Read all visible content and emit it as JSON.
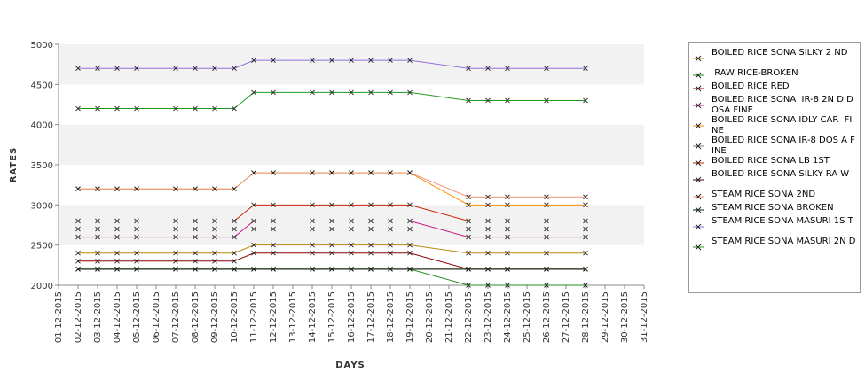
{
  "chart_data": {
    "type": "line",
    "title": "",
    "xlabel": "DAYS",
    "ylabel": "RATES",
    "ylim": [
      2000,
      5000
    ],
    "yticks": [
      2000,
      2500,
      3000,
      3500,
      4000,
      4500,
      5000
    ],
    "grid": "alternating horizontal bands",
    "legend_position": "right",
    "categories": [
      "01-12-2015",
      "02-12-2015",
      "03-12-2015",
      "04-12-2015",
      "05-12-2015",
      "06-12-2015",
      "07-12-2015",
      "08-12-2015",
      "09-12-2015",
      "10-12-2015",
      "11-12-2015",
      "12-12-2015",
      "13-12-2015",
      "14-12-2015",
      "15-12-2015",
      "16-12-2015",
      "17-12-2015",
      "18-12-2015",
      "19-12-2015",
      "20-12-2015",
      "21-12-2015",
      "22-12-2015",
      "23-12-2015",
      "24-12-2015",
      "25-12-2015",
      "26-12-2015",
      "27-12-2015",
      "28-12-2015",
      "29-12-2015",
      "30-12-2015",
      "31-12-2015"
    ],
    "x": [
      "02-12-2015",
      "03-12-2015",
      "04-12-2015",
      "05-12-2015",
      "07-12-2015",
      "08-12-2015",
      "09-12-2015",
      "10-12-2015",
      "11-12-2015",
      "12-12-2015",
      "14-12-2015",
      "15-12-2015",
      "16-12-2015",
      "17-12-2015",
      "18-12-2015",
      "19-12-2015",
      "22-12-2015",
      "23-12-2015",
      "24-12-2015",
      "26-12-2015",
      "28-12-2015"
    ],
    "series": [
      {
        "name": "BOILED RICE SONA SILKY 2 ND",
        "color": "#b8860b",
        "values": [
          2400,
          2400,
          2400,
          2400,
          2400,
          2400,
          2400,
          2400,
          2500,
          2500,
          2500,
          2500,
          2500,
          2500,
          2500,
          2500,
          2400,
          2400,
          2400,
          2400,
          2400
        ]
      },
      {
        "name": " RAW RICE-BROKEN",
        "color": "#228b22",
        "values": [
          2200,
          2200,
          2200,
          2200,
          2200,
          2200,
          2200,
          2200,
          2200,
          2200,
          2200,
          2200,
          2200,
          2200,
          2200,
          2200,
          2000,
          2000,
          2000,
          2000,
          2000
        ]
      },
      {
        "name": "BOILED RICE RED",
        "color": "#8b0000",
        "values": [
          2300,
          2300,
          2300,
          2300,
          2300,
          2300,
          2300,
          2300,
          2400,
          2400,
          2400,
          2400,
          2400,
          2400,
          2400,
          2400,
          2200,
          2200,
          2200,
          2200,
          2200
        ]
      },
      {
        "name": "BOILED RICE SONA  IR-8 2N D DOSA FINE",
        "color": "#c71585",
        "values": [
          2600,
          2600,
          2600,
          2600,
          2600,
          2600,
          2600,
          2600,
          2800,
          2800,
          2800,
          2800,
          2800,
          2800,
          2800,
          2800,
          2600,
          2600,
          2600,
          2600,
          2600
        ]
      },
      {
        "name": "BOILED RICE SONA IDLY CAR  FINE",
        "color": "#ff8c00",
        "values": [
          3200,
          3200,
          3200,
          3200,
          3200,
          3200,
          3200,
          3200,
          3400,
          3400,
          3400,
          3400,
          3400,
          3400,
          3400,
          3400,
          3000,
          3000,
          3000,
          3000,
          3000
        ]
      },
      {
        "name": "BOILED RICE SONA IR-8 DOS A FINE",
        "color": "#708090",
        "values": [
          2700,
          2700,
          2700,
          2700,
          2700,
          2700,
          2700,
          2700,
          2700,
          2700,
          2700,
          2700,
          2700,
          2700,
          2700,
          2700,
          2700,
          2700,
          2700,
          2700,
          2700
        ]
      },
      {
        "name": "BOILED RICE SONA LB 1ST",
        "color": "#cc2200",
        "values": [
          2800,
          2800,
          2800,
          2800,
          2800,
          2800,
          2800,
          2800,
          3000,
          3000,
          3000,
          3000,
          3000,
          3000,
          3000,
          3000,
          2800,
          2800,
          2800,
          2800,
          2800
        ]
      },
      {
        "name": "BOILED RICE SONA SILKY RA W",
        "color": "#4b0010",
        "values": [
          2200,
          2200,
          2200,
          2200,
          2200,
          2200,
          2200,
          2200,
          2200,
          2200,
          2200,
          2200,
          2200,
          2200,
          2200,
          2200,
          2200,
          2200,
          2200,
          2200,
          2200
        ]
      },
      {
        "name": "STEAM RICE SONA 2ND",
        "color": "#e9967a",
        "values": [
          3200,
          3200,
          3200,
          3200,
          3200,
          3200,
          3200,
          3200,
          3400,
          3400,
          3400,
          3400,
          3400,
          3400,
          3400,
          3400,
          3100,
          3100,
          3100,
          3100,
          3100
        ]
      },
      {
        "name": "STEAM RICE SONA BROKEN",
        "color": "#0a2a0a",
        "values": [
          2200,
          2200,
          2200,
          2200,
          2200,
          2200,
          2200,
          2200,
          2200,
          2200,
          2200,
          2200,
          2200,
          2200,
          2200,
          2200,
          2200,
          2200,
          2200,
          2200,
          2200
        ]
      },
      {
        "name": "STEAM RICE SONA MASURI 1S T",
        "color": "#9370db",
        "values": [
          4700,
          4700,
          4700,
          4700,
          4700,
          4700,
          4700,
          4700,
          4800,
          4800,
          4800,
          4800,
          4800,
          4800,
          4800,
          4800,
          4700,
          4700,
          4700,
          4700,
          4700
        ]
      },
      {
        "name": "STEAM RICE SONA MASURI 2N D",
        "color": "#1e9b1e",
        "values": [
          4200,
          4200,
          4200,
          4200,
          4200,
          4200,
          4200,
          4200,
          4400,
          4400,
          4400,
          4400,
          4400,
          4400,
          4400,
          4400,
          4300,
          4300,
          4300,
          4300,
          4300
        ]
      }
    ],
    "extra_tail": {
      "series_index": 4,
      "name": "BOILED RICE SONA IDLY CAR  FINE",
      "x": [
        "19-12-2015",
        "22-12-2015",
        "23-12-2015",
        "24-12-2015",
        "26-12-2015",
        "28-12-2015"
      ]
    }
  }
}
